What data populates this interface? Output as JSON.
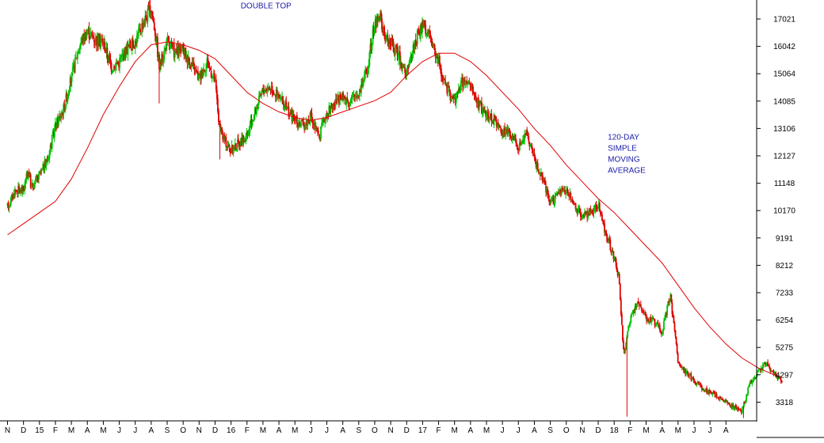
{
  "chart_data": {
    "type": "candlestick",
    "title": "",
    "xlabel": "",
    "ylabel": "",
    "ylim": [
      2650,
      17700
    ],
    "y_ticks": [
      3318,
      4297,
      5275,
      6254,
      7233,
      8212,
      9191,
      10170,
      11148,
      12127,
      13106,
      14085,
      15064,
      16042,
      17021
    ],
    "x_ticks": [
      "N",
      "D",
      "15",
      "F",
      "M",
      "A",
      "M",
      "J",
      "J",
      "A",
      "S",
      "O",
      "N",
      "D",
      "16",
      "F",
      "M",
      "A",
      "M",
      "J",
      "J",
      "A",
      "S",
      "O",
      "N",
      "D",
      "17",
      "F",
      "M",
      "A",
      "M",
      "J",
      "J",
      "A",
      "S",
      "O",
      "N",
      "D",
      "18",
      "F",
      "M",
      "A",
      "M",
      "J",
      "J",
      "A"
    ],
    "colors": {
      "up": "#00c000",
      "down": "#e00000",
      "moving_average": "#e00000",
      "annotation": "#1a1aaa",
      "grid": "#000000"
    },
    "price_path": [
      [
        0,
        10300
      ],
      [
        0.5,
        10900
      ],
      [
        1,
        10900
      ],
      [
        1.3,
        11600
      ],
      [
        1.5,
        11000
      ],
      [
        2,
        11400
      ],
      [
        2.5,
        12000
      ],
      [
        3,
        13200
      ],
      [
        3.5,
        13800
      ],
      [
        4,
        14900
      ],
      [
        4.5,
        16100
      ],
      [
        5,
        16600
      ],
      [
        5.5,
        16300
      ],
      [
        6,
        16200
      ],
      [
        6.5,
        15300
      ],
      [
        7,
        15500
      ],
      [
        7.5,
        16000
      ],
      [
        8,
        16200
      ],
      [
        8.5,
        16900
      ],
      [
        9,
        17400
      ],
      [
        9.3,
        16400
      ],
      [
        9.5,
        15300
      ],
      [
        10,
        16200
      ],
      [
        10.5,
        15800
      ],
      [
        11,
        15900
      ],
      [
        11.5,
        15400
      ],
      [
        12,
        14900
      ],
      [
        12.5,
        15500
      ],
      [
        13,
        14800
      ],
      [
        13.3,
        13000
      ],
      [
        13.6,
        12700
      ],
      [
        14,
        12300
      ],
      [
        14.5,
        12600
      ],
      [
        15,
        12800
      ],
      [
        15.5,
        13700
      ],
      [
        16,
        14500
      ],
      [
        16.5,
        14600
      ],
      [
        17,
        14200
      ],
      [
        17.5,
        13800
      ],
      [
        18,
        13400
      ],
      [
        18.5,
        13200
      ],
      [
        19,
        13500
      ],
      [
        19.5,
        12800
      ],
      [
        20,
        13700
      ],
      [
        20.5,
        14000
      ],
      [
        21,
        14200
      ],
      [
        21.5,
        14100
      ],
      [
        22,
        14400
      ],
      [
        22.5,
        15200
      ],
      [
        23,
        16800
      ],
      [
        23.3,
        17200
      ],
      [
        23.6,
        16400
      ],
      [
        24,
        16200
      ],
      [
        24.5,
        15700
      ],
      [
        25,
        15000
      ],
      [
        25.5,
        16200
      ],
      [
        26,
        16800
      ],
      [
        26.5,
        16300
      ],
      [
        27,
        15500
      ],
      [
        27.5,
        14500
      ],
      [
        28,
        14100
      ],
      [
        28.5,
        14800
      ],
      [
        29,
        14600
      ],
      [
        29.5,
        14000
      ],
      [
        30,
        13600
      ],
      [
        30.5,
        13400
      ],
      [
        31,
        13000
      ],
      [
        31.5,
        12900
      ],
      [
        32,
        12500
      ],
      [
        32.5,
        13000
      ],
      [
        33,
        12000
      ],
      [
        33.5,
        11300
      ],
      [
        34,
        10400
      ],
      [
        34.5,
        10800
      ],
      [
        35,
        10900
      ],
      [
        35.5,
        10400
      ],
      [
        36,
        10000
      ],
      [
        36.5,
        10100
      ],
      [
        37,
        10400
      ],
      [
        37.5,
        9300
      ],
      [
        38,
        8500
      ],
      [
        38.3,
        7700
      ],
      [
        38.6,
        5000
      ],
      [
        39,
        6300
      ],
      [
        39.5,
        6900
      ],
      [
        40,
        6300
      ],
      [
        40.5,
        6200
      ],
      [
        41,
        5800
      ],
      [
        41.5,
        7200
      ],
      [
        42,
        4800
      ],
      [
        42.5,
        4400
      ],
      [
        43,
        4100
      ],
      [
        43.5,
        3800
      ],
      [
        44,
        3650
      ],
      [
        44.5,
        3500
      ],
      [
        45,
        3300
      ],
      [
        45.5,
        3100
      ],
      [
        46,
        3000
      ],
      [
        46.5,
        4000
      ],
      [
        47,
        4400
      ],
      [
        47.5,
        4700
      ],
      [
        48,
        4300
      ],
      [
        48.5,
        4050
      ]
    ],
    "moving_average": [
      [
        0,
        9300
      ],
      [
        1,
        9700
      ],
      [
        2,
        10100
      ],
      [
        3,
        10500
      ],
      [
        4,
        11300
      ],
      [
        5,
        12400
      ],
      [
        6,
        13600
      ],
      [
        7,
        14600
      ],
      [
        8,
        15500
      ],
      [
        9,
        16100
      ],
      [
        10,
        16200
      ],
      [
        11,
        16100
      ],
      [
        12,
        15900
      ],
      [
        13,
        15600
      ],
      [
        14,
        15000
      ],
      [
        15,
        14400
      ],
      [
        16,
        14000
      ],
      [
        17,
        13700
      ],
      [
        18,
        13500
      ],
      [
        19,
        13400
      ],
      [
        20,
        13500
      ],
      [
        21,
        13700
      ],
      [
        22,
        13900
      ],
      [
        23,
        14100
      ],
      [
        24,
        14400
      ],
      [
        25,
        15000
      ],
      [
        26,
        15500
      ],
      [
        27,
        15800
      ],
      [
        28,
        15800
      ],
      [
        29,
        15500
      ],
      [
        30,
        15000
      ],
      [
        31,
        14400
      ],
      [
        32,
        13800
      ],
      [
        33,
        13100
      ],
      [
        34,
        12500
      ],
      [
        35,
        11800
      ],
      [
        36,
        11200
      ],
      [
        37,
        10600
      ],
      [
        38,
        10100
      ],
      [
        39,
        9500
      ],
      [
        40,
        8900
      ],
      [
        41,
        8300
      ],
      [
        42,
        7500
      ],
      [
        43,
        6700
      ],
      [
        44,
        6000
      ],
      [
        45,
        5400
      ],
      [
        46,
        4900
      ],
      [
        47,
        4550
      ],
      [
        48,
        4300
      ],
      [
        48.5,
        4200
      ]
    ],
    "annotations": [
      {
        "lines": [
          "DOUBLE TOP"
        ],
        "x": 14.6,
        "y": 17400
      },
      {
        "lines": [
          "120-DAY",
          "SIMPLE",
          "MOVING",
          "AVERAGE"
        ],
        "x": 37.6,
        "y": 12700
      }
    ],
    "legend": "none",
    "grid": false
  }
}
